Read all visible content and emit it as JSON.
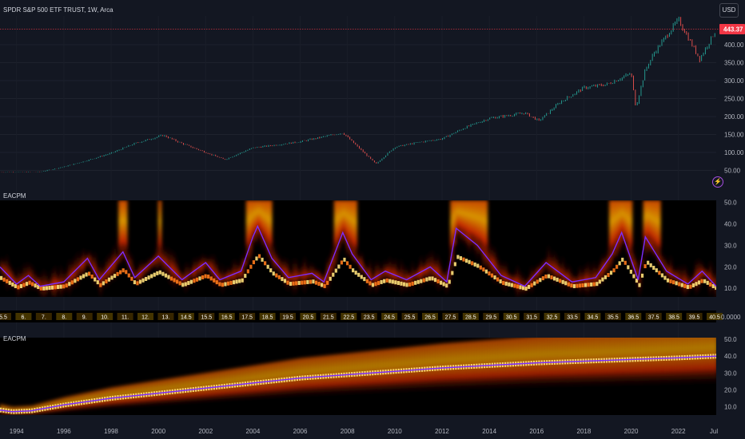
{
  "header": {
    "title": "SPDR S&P 500 ETF TRUST, 1W, Arca",
    "currency": "USD"
  },
  "colors": {
    "background": "#131722",
    "up": "#26a69a",
    "down": "#ef5350",
    "last_price_line": "#f23645",
    "cycle_line": "#7b2cff",
    "heat_low": "#000000",
    "heat_mid": "#e02a00",
    "heat_high": "#ffff80"
  },
  "icons": {
    "alert": "lightning-bolt-icon"
  },
  "chart_data": [
    {
      "type": "line",
      "title": "SPDR S&P 500 ETF TRUST, 1W, Arca",
      "x_range": [
        1993.3,
        2023.6
      ],
      "y_ticks": [
        50,
        100,
        150,
        200,
        250,
        300,
        350,
        400
      ],
      "y_tick_labels": [
        "50.00",
        "100.00",
        "150.00",
        "200.00",
        "250.00",
        "300.00",
        "350.00",
        "400.00"
      ],
      "ylim": [
        0,
        480
      ],
      "last_price": 443.37,
      "last_price_label": "443.37",
      "series": [
        {
          "x": [
            1993.3,
            1995.0,
            1996.0,
            1997.0,
            1998.0,
            1999.0,
            2000.2,
            2001.0,
            2002.8,
            2004.0,
            2005.0,
            2006.0,
            2007.8,
            2009.2,
            2010.0,
            2011.0,
            2012.0,
            2013.0,
            2014.0,
            2015.5,
            2016.1,
            2017.0,
            2018.0,
            2019.0,
            2020.0,
            2020.2,
            2020.6,
            2021.0,
            2022.0,
            2022.9,
            2023.6
          ],
          "values": [
            45,
            46,
            60,
            78,
            98,
            125,
            148,
            125,
            80,
            113,
            121,
            130,
            155,
            68,
            115,
            128,
            138,
            170,
            195,
            210,
            188,
            240,
            280,
            290,
            320,
            225,
            330,
            380,
            470,
            360,
            443
          ]
        }
      ]
    },
    {
      "type": "heatmap",
      "title": "EACPM",
      "x_range": [
        1993.3,
        2023.6
      ],
      "y_ticks": [
        10,
        20,
        30,
        40,
        50
      ],
      "y_tick_labels": [
        "10.0",
        "20.0",
        "30.0",
        "40.0",
        "50.0"
      ],
      "ylim": [
        6,
        51
      ],
      "series": [
        {
          "name": "dominant cycle",
          "x": [
            1993.3,
            1994.0,
            1994.5,
            1995.0,
            1996.0,
            1997.0,
            1997.5,
            1998.5,
            1999.0,
            2000.0,
            2001.0,
            2002.0,
            2002.6,
            2003.5,
            2004.0,
            2004.2,
            2004.8,
            2005.5,
            2006.5,
            2007.0,
            2007.8,
            2008.2,
            2009.0,
            2009.6,
            2010.5,
            2011.5,
            2012.2,
            2012.6,
            2013.5,
            2014.5,
            2015.5,
            2016.4,
            2017.5,
            2018.5,
            2019.2,
            2019.6,
            2020.3,
            2020.6,
            2021.5,
            2022.4,
            2023.0,
            2023.6
          ],
          "values": [
            20,
            12,
            16,
            11,
            13,
            24,
            14,
            27,
            15,
            25,
            14,
            22,
            14,
            18,
            34,
            39,
            24,
            15,
            17,
            13,
            36,
            26,
            14,
            18,
            14,
            20,
            13,
            38,
            30,
            16,
            11,
            22,
            13,
            15,
            26,
            36,
            14,
            34,
            18,
            12,
            18,
            11
          ]
        }
      ]
    },
    {
      "type": "heatmap",
      "title": "",
      "value_labels": [
        "5.5",
        "6.",
        "7.",
        "8.",
        "9.",
        "10.",
        "11.",
        "12.",
        "13.",
        "14.5",
        "15.5",
        "16.5",
        "17.5",
        "18.5",
        "19.5",
        "20.5",
        "21.5",
        "22.5",
        "23.5",
        "24.5",
        "25.5",
        "26.5",
        "27.5",
        "28.5",
        "29.5",
        "30.5",
        "31.5",
        "32.5",
        "33.5",
        "34.5",
        "35.5",
        "36.5",
        "37.5",
        "38.5",
        "39.5",
        "40.5"
      ],
      "y_tick_labels": [
        "0.0000"
      ]
    },
    {
      "type": "heatmap",
      "title": "EACPM",
      "x_range": [
        1993.3,
        2023.6
      ],
      "x_ticks": [
        1994,
        1996,
        1998,
        2000,
        2002,
        2004,
        2006,
        2008,
        2010,
        2012,
        2014,
        2016,
        2018,
        2020,
        2022,
        2023.5
      ],
      "x_tick_labels": [
        "1994",
        "1996",
        "1998",
        "2000",
        "2002",
        "2004",
        "2006",
        "2008",
        "2010",
        "2012",
        "2014",
        "2016",
        "2018",
        "2020",
        "2022",
        "Jul"
      ],
      "y_ticks": [
        10,
        20,
        30,
        40,
        50
      ],
      "y_tick_labels": [
        "10.0",
        "20.0",
        "30.0",
        "40.0",
        "50.0"
      ],
      "ylim": [
        5,
        51
      ],
      "series": [
        {
          "name": "dominant cycle",
          "x": [
            1993.3,
            1993.8,
            1994.6,
            1996.0,
            1998.0,
            2000.0,
            2002.0,
            2004.0,
            2006.0,
            2008.0,
            2010.0,
            2012.0,
            2014.0,
            2016.0,
            2018.0,
            2020.0,
            2022.0,
            2023.6
          ],
          "values": [
            8,
            7,
            7.5,
            11,
            15,
            18,
            21,
            24,
            27,
            29,
            31,
            33,
            34.5,
            36,
            37,
            38,
            39,
            40
          ]
        }
      ]
    }
  ]
}
